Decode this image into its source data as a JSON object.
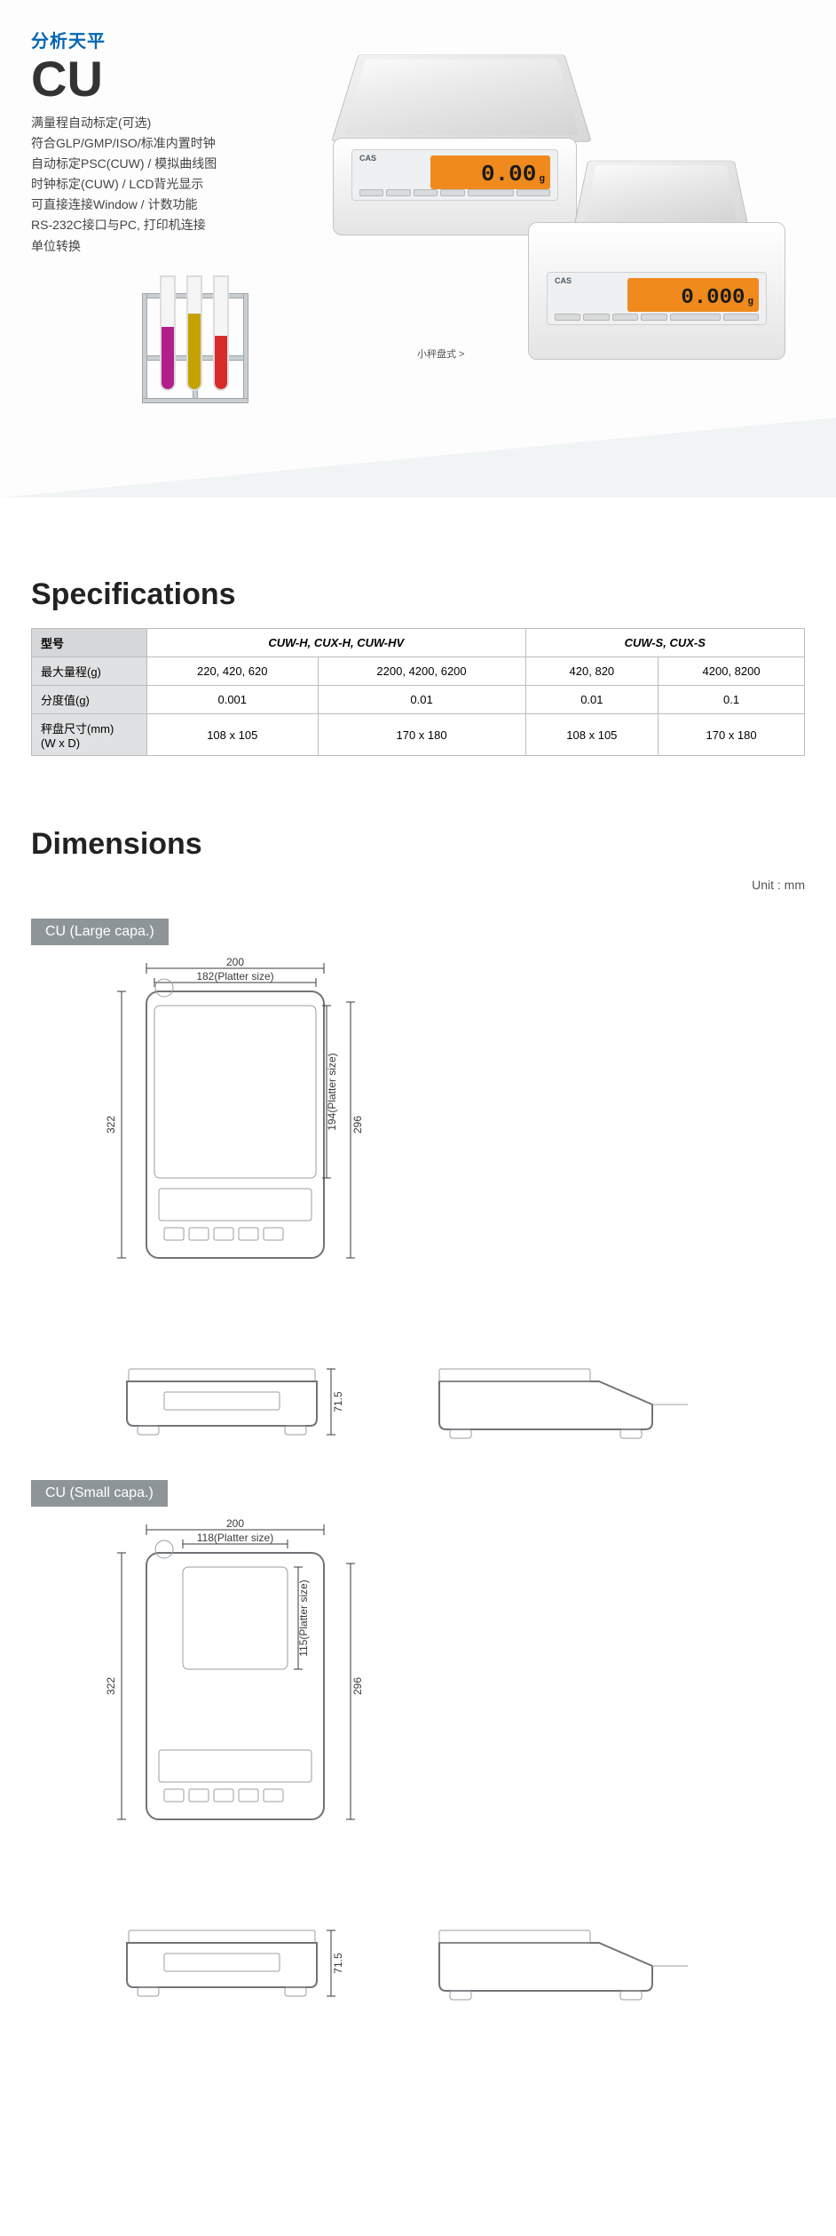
{
  "hero": {
    "category": "分析天平",
    "category_color": "#0066b3",
    "model": "CU",
    "model_color": "#333333",
    "features": [
      "满量程自动标定(可选)",
      "符合GLP/GMP/ISO/标准内置时钟",
      "自动标定PSC(CUW) / 模拟曲线图",
      "时钟标定(CUW) / LCD背光显示",
      "可直接连接Window / 计数功能",
      "RS-232C接口与PC, 打印机连接",
      "单位转换"
    ],
    "feature_color": "#444444",
    "mini_label": "小秤盘式 >",
    "scale_large": {
      "display": "0.00",
      "unit": "g",
      "lcd_bg": "#f08a1d",
      "lcd_fg": "#1a1a1a",
      "logo": "CAS"
    },
    "scale_small": {
      "display": "0.000",
      "unit": "g",
      "lcd_bg": "#f08a1d",
      "lcd_fg": "#1a1a1a",
      "logo": "CAS"
    },
    "tube_colors": [
      "#b01f8c",
      "#c4a300",
      "#d62c2c"
    ]
  },
  "specs": {
    "heading": "Specifications",
    "group_headers": [
      "CUW-H, CUX-H, CUW-HV",
      "CUW-S, CUX-S"
    ],
    "row_headers": [
      "型号",
      "最大量程(g)",
      "分度值(g)",
      "秤盘尺寸(mm)\n(W x D)"
    ],
    "rows": [
      [
        "220, 420, 620",
        "2200, 4200, 6200",
        "420, 820",
        "4200, 8200"
      ],
      [
        "0.001",
        "0.01",
        "0.01",
        "0.1"
      ],
      [
        "108 x 105",
        "170 x 180",
        "108 x 105",
        "170 x 180"
      ]
    ],
    "col_span_map": [
      1,
      1,
      1,
      1
    ]
  },
  "dimensions": {
    "heading": "Dimensions",
    "unit_label": "Unit : mm",
    "groups": [
      {
        "tag": "CU (Large capa.)",
        "top": {
          "outer_w": "200",
          "platter_w": "182(Platter size)",
          "outer_h": "322",
          "inner_h": "296",
          "platter_h": "194(Platter size)"
        },
        "side_h": "71.5"
      },
      {
        "tag": "CU (Small capa.)",
        "top": {
          "outer_w": "200",
          "platter_w": "118(Platter size)",
          "outer_h": "322",
          "inner_h": "296",
          "platter_h": "115(Platter size)"
        },
        "side_h": "71.5"
      }
    ]
  }
}
